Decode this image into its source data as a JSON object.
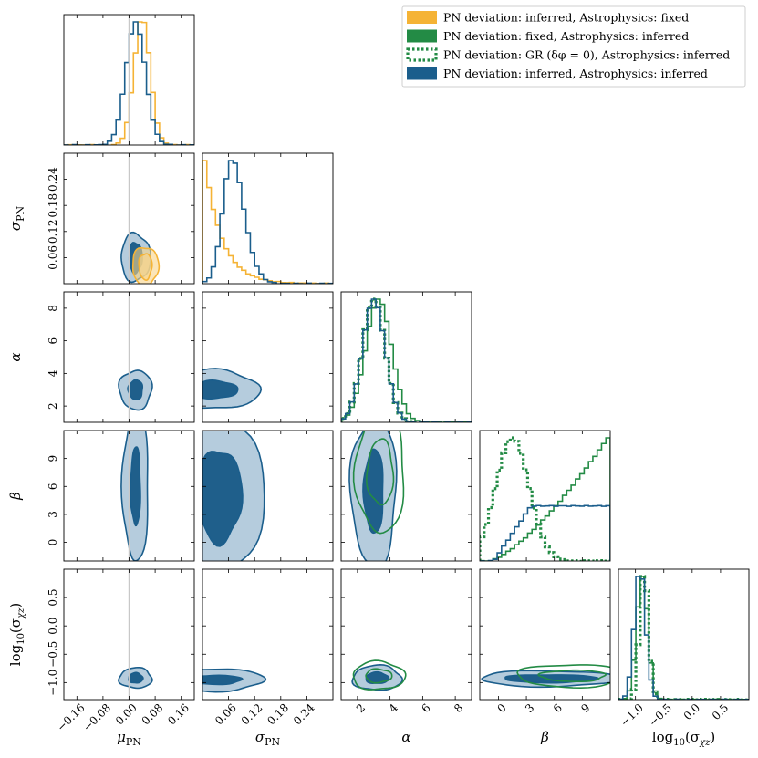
{
  "colors": {
    "orange": "#f5b335",
    "green": "#238b45",
    "blue": "#1b5e8c",
    "blue_fill_outer": "#a8c3d7",
    "blue_fill_inner": "#1f5f8b",
    "orange_fill": "#f8d489",
    "truth_line": "#c8c8c8"
  },
  "legend": [
    {
      "label": "PN deviation: inferred, Astrophysics: fixed",
      "color": "#f5b335",
      "style": "fill"
    },
    {
      "label": "PN deviation: fixed, Astrophysics: inferred",
      "color": "#238b45",
      "style": "fill"
    },
    {
      "label": "PN deviation: GR (δφ = 0), Astrophysics: inferred",
      "color": "#238b45",
      "style": "dotted"
    },
    {
      "label": "PN deviation: inferred, Astrophysics: inferred",
      "color": "#1b5e8c",
      "style": "fill"
    }
  ],
  "chart_data": {
    "type": "corner",
    "parameters": [
      {
        "key": "mu",
        "label": "μ_PN",
        "range": [
          -0.2,
          0.2
        ],
        "ticks": [
          "−0.16",
          "−0.08",
          "0.00",
          "0.08",
          "0.16"
        ],
        "tick_values": [
          -0.16,
          -0.08,
          0.0,
          0.08,
          0.16
        ]
      },
      {
        "key": "sigma",
        "label": "σ_PN",
        "range": [
          0.0,
          0.3
        ],
        "ticks": [
          "0.06",
          "0.12",
          "0.18",
          "0.24"
        ],
        "tick_values": [
          0.06,
          0.12,
          0.18,
          0.24
        ]
      },
      {
        "key": "alpha",
        "label": "α",
        "range": [
          1.0,
          9.0
        ],
        "ticks": [
          "2",
          "4",
          "6",
          "8"
        ],
        "tick_values": [
          2,
          4,
          6,
          8
        ]
      },
      {
        "key": "beta",
        "label": "β",
        "range": [
          -2.0,
          12.0
        ],
        "ticks": [
          "0",
          "3",
          "6",
          "9"
        ],
        "tick_values": [
          0,
          3,
          6,
          9
        ]
      },
      {
        "key": "log10sig",
        "label": "log₁₀(σ_χz)",
        "range": [
          -1.3,
          1.0
        ],
        "ticks": [
          "−1.0",
          "−0.5",
          "0.0",
          "0.5"
        ],
        "tick_values": [
          -1.0,
          -0.5,
          0.0,
          0.5
        ]
      }
    ],
    "truth": {
      "mu": 0.0
    },
    "series": [
      {
        "name": "PN deviation: inferred, Astrophysics: fixed",
        "color": "#f5b335",
        "params": [
          "mu",
          "sigma"
        ],
        "mean": {
          "mu": 0.04,
          "sigma": 0.03
        },
        "sd": {
          "mu": 0.025,
          "sigma": 0.045
        }
      },
      {
        "name": "PN deviation: fixed, Astrophysics: inferred",
        "color": "#238b45",
        "params": [
          "alpha",
          "beta",
          "log10sig"
        ],
        "mean": {
          "alpha": 3.3,
          "beta": 8.0,
          "log10sig": -0.88
        },
        "sd": {
          "alpha": 0.8,
          "beta": 3.2,
          "log10sig": 0.1
        }
      },
      {
        "name": "PN deviation: GR (δφ = 0), Astrophysics: inferred",
        "color": "#238b45",
        "params": [
          "alpha",
          "beta",
          "log10sig"
        ],
        "mean": {
          "alpha": 3.0,
          "beta": 1.5,
          "log10sig": -0.85
        },
        "sd": {
          "alpha": 0.7,
          "beta": 1.8,
          "log10sig": 0.08
        }
      },
      {
        "name": "PN deviation: inferred, Astrophysics: inferred",
        "color": "#1b5e8c",
        "params": [
          "mu",
          "sigma",
          "alpha",
          "beta",
          "log10sig"
        ],
        "mean": {
          "mu": 0.02,
          "sigma": 0.06,
          "alpha": 3.0,
          "beta": 6.0,
          "log10sig": -0.92
        },
        "sd": {
          "mu": 0.03,
          "sigma": 0.04,
          "alpha": 0.7,
          "beta": 4.0,
          "log10sig": 0.1
        }
      }
    ],
    "contours_2d": [
      {
        "x": "mu",
        "y": "sigma",
        "center": [
          0.02,
          0.06
        ],
        "radii_outer": [
          0.045,
          0.055
        ],
        "radii_inner": [
          0.02,
          0.035
        ],
        "series": "blue"
      },
      {
        "x": "mu",
        "y": "sigma",
        "center": [
          0.05,
          0.04
        ],
        "radii_outer": [
          0.04,
          0.045
        ],
        "radii_inner": [
          0.02,
          0.03
        ],
        "series": "orange"
      },
      {
        "x": "mu",
        "y": "alpha",
        "center": [
          0.02,
          3.0
        ],
        "radii_outer": [
          0.05,
          1.2
        ],
        "radii_inner": [
          0.022,
          0.6
        ],
        "series": "blue"
      },
      {
        "x": "mu",
        "y": "beta",
        "center": [
          0.02,
          6.0
        ],
        "radii_outer": [
          0.04,
          8.0
        ],
        "radii_inner": [
          0.015,
          4.2
        ],
        "series": "blue"
      },
      {
        "x": "mu",
        "y": "log10sig",
        "center": [
          0.02,
          -0.92
        ],
        "radii_outer": [
          0.05,
          0.18
        ],
        "radii_inner": [
          0.022,
          0.09
        ],
        "series": "blue"
      },
      {
        "x": "sigma",
        "y": "alpha",
        "center": [
          0.03,
          3.0
        ],
        "radii_outer": [
          0.1,
          1.2
        ],
        "radii_inner": [
          0.05,
          0.55
        ],
        "series": "blue"
      },
      {
        "x": "sigma",
        "y": "beta",
        "center": [
          0.04,
          5.0
        ],
        "radii_outer": [
          0.1,
          9.0
        ],
        "radii_inner": [
          0.05,
          5.0
        ],
        "series": "blue"
      },
      {
        "x": "sigma",
        "y": "log10sig",
        "center": [
          0.03,
          -0.95
        ],
        "radii_outer": [
          0.11,
          0.2
        ],
        "radii_inner": [
          0.06,
          0.08
        ],
        "series": "blue"
      },
      {
        "x": "alpha",
        "y": "beta",
        "center": [
          3.0,
          5.5
        ],
        "radii_outer": [
          1.4,
          8.0
        ],
        "radii_inner": [
          0.6,
          4.5
        ],
        "series": "blue"
      },
      {
        "x": "alpha",
        "y": "beta",
        "center": [
          3.4,
          7.5
        ],
        "radii_outer": [
          1.5,
          6.5
        ],
        "radii_inner": [
          0.8,
          3.5
        ],
        "series": "green"
      },
      {
        "x": "alpha",
        "y": "log10sig",
        "center": [
          3.2,
          -0.92
        ],
        "radii_outer": [
          1.5,
          0.22
        ],
        "radii_inner": [
          0.7,
          0.1
        ],
        "series": "blue"
      },
      {
        "x": "alpha",
        "y": "log10sig",
        "center": [
          3.3,
          -0.88
        ],
        "radii_outer": [
          1.6,
          0.25
        ],
        "radii_inner": [
          0.8,
          0.12
        ],
        "series": "green"
      },
      {
        "x": "beta",
        "y": "log10sig",
        "center": [
          5.5,
          -0.93
        ],
        "radii_outer": [
          7.5,
          0.14
        ],
        "radii_inner": [
          5.0,
          0.07
        ],
        "series": "blue"
      },
      {
        "x": "beta",
        "y": "log10sig",
        "center": [
          8.0,
          -0.88
        ],
        "radii_outer": [
          6.0,
          0.2
        ],
        "radii_inner": [
          3.5,
          0.1
        ],
        "series": "green"
      }
    ],
    "xlabel": "",
    "ylabel": "",
    "title": ""
  }
}
